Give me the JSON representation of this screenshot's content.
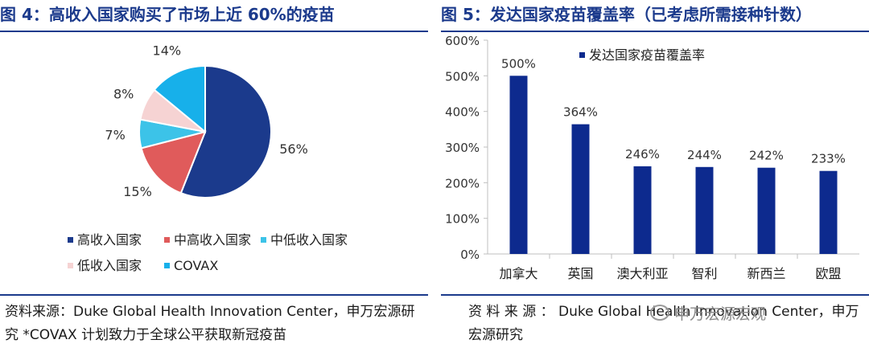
{
  "left": {
    "title": "图 4：高收入国家购买了市场上近 60%的疫苗",
    "source": "资料来源：Duke Global Health Innovation Center，申万宏源研究 *COVAX 计划致力于全球公平获取新冠疫苗"
  },
  "right": {
    "title": "图 5：发达国家疫苗覆盖率（已考虑所需接种针数）",
    "source": "资 料 来 源 ： Duke Global Health Innovation Center，申万宏源研究",
    "watermark": "申万宏源宏观"
  },
  "chart_data": [
    {
      "type": "pie",
      "labels": [
        "高收入国家",
        "中高收入国家",
        "中低收入国家",
        "低收入国家",
        "COVAX"
      ],
      "values": [
        56,
        15,
        7,
        8,
        14
      ],
      "value_labels": [
        "56%",
        "15%",
        "7%",
        "8%",
        "14%"
      ],
      "colors": [
        "#1b3a8c",
        "#e05b5b",
        "#3cc3e8",
        "#f6d3d3",
        "#17b0ea"
      ],
      "legend_position": "bottom"
    },
    {
      "type": "bar",
      "categories": [
        "加拿大",
        "英国",
        "澳大利亚",
        "智利",
        "新西兰",
        "欧盟"
      ],
      "series": [
        {
          "name": "发达国家疫苗覆盖率",
          "values": [
            500,
            364,
            246,
            244,
            242,
            233
          ],
          "value_labels": [
            "500%",
            "364%",
            "246%",
            "244%",
            "242%",
            "233%"
          ]
        }
      ],
      "ylim": [
        0,
        600
      ],
      "yticks": [
        0,
        100,
        200,
        300,
        400,
        500,
        600
      ],
      "ytick_labels": [
        "0%",
        "100%",
        "200%",
        "300%",
        "400%",
        "500%",
        "600%"
      ],
      "bar_color": "#0d2a8e",
      "legend_position": "top-right",
      "grid": false
    }
  ]
}
